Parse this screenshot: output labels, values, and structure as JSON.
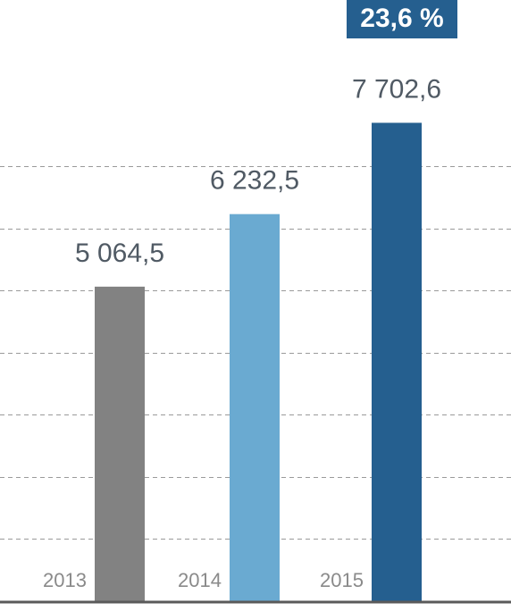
{
  "chart_data": {
    "type": "bar",
    "categories": [
      "2013",
      "2014",
      "2015"
    ],
    "values": [
      5064.5,
      6232.5,
      7702.6
    ],
    "value_labels": [
      "5 064,5",
      "6 232,5",
      "7 702,6"
    ],
    "colors": [
      "#828282",
      "#6aaad1",
      "#255f8f"
    ],
    "annotation": "23,6 %",
    "ylim": [
      0,
      9680
    ],
    "yticks": [
      1000,
      2000,
      3000,
      4000,
      5000,
      6000,
      7000
    ],
    "grid": true
  }
}
